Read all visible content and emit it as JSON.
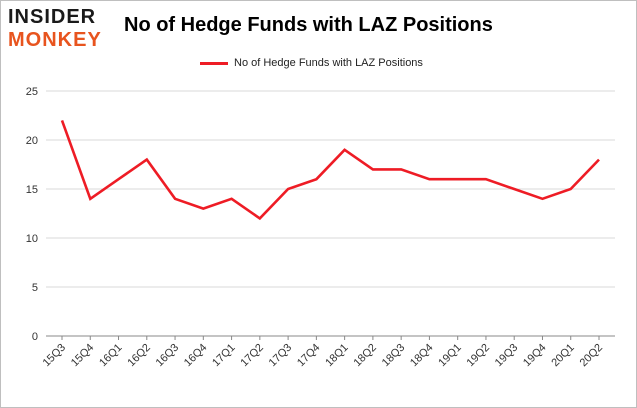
{
  "logo": {
    "line1": "INSIDER",
    "line2": "MONKEY"
  },
  "colors": {
    "series": "#ee1c25",
    "grid": "#d9d9d9",
    "axis": "#888888",
    "logo_accent": "#e8541e"
  },
  "chart_data": {
    "type": "line",
    "title": "No of Hedge Funds with LAZ Positions",
    "xlabel": "",
    "ylabel": "",
    "ylim": [
      0,
      25
    ],
    "yticks": [
      0,
      5,
      10,
      15,
      20,
      25
    ],
    "grid": "horizontal",
    "legend_position": "top-center",
    "categories": [
      "15Q3",
      "15Q4",
      "16Q1",
      "16Q2",
      "16Q3",
      "16Q4",
      "17Q1",
      "17Q2",
      "17Q3",
      "17Q4",
      "18Q1",
      "18Q2",
      "18Q3",
      "18Q4",
      "19Q1",
      "19Q2",
      "19Q3",
      "19Q4",
      "20Q1",
      "20Q2"
    ],
    "series": [
      {
        "name": "No of Hedge Funds with LAZ Positions",
        "values": [
          22,
          14,
          16,
          18,
          14,
          13,
          14,
          12,
          15,
          16,
          19,
          17,
          17,
          16,
          16,
          16,
          15,
          14,
          15,
          18
        ]
      }
    ]
  }
}
